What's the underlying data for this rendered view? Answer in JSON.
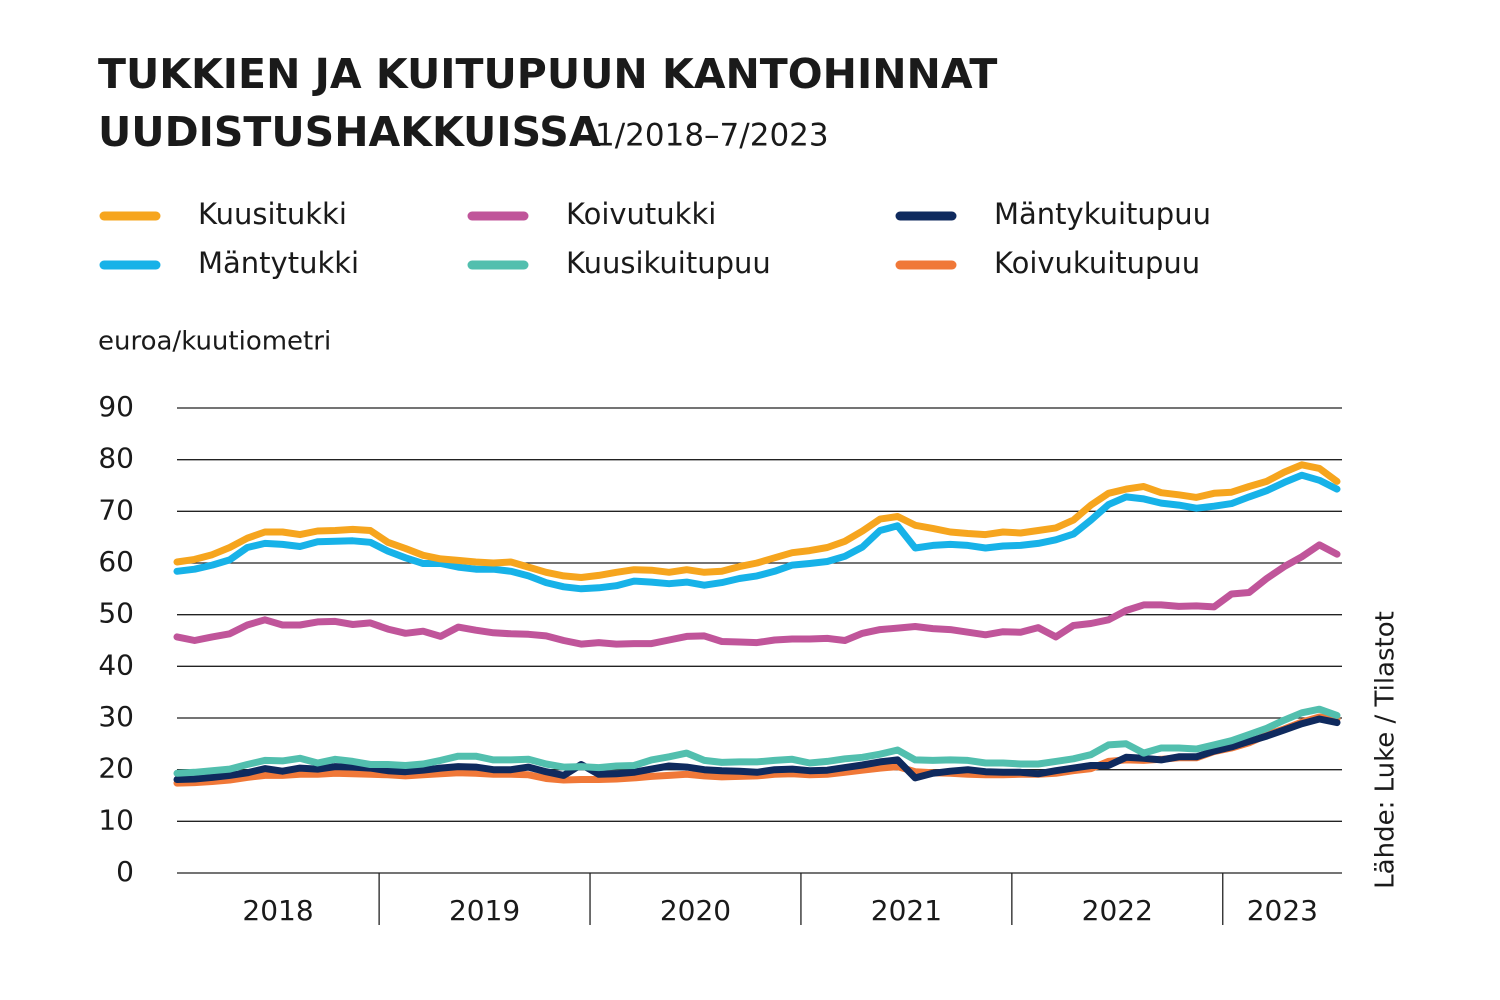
{
  "chart_data": {
    "type": "line",
    "title": [
      "TUKKIEN JA KUITUPUUN KANTOHINNAT",
      "UUDISTUSHAKKUISSA"
    ],
    "subtitle": "1/2018–7/2023",
    "y_label": "euroa/kuutiometri",
    "source": "Lähde: Luke / Tilastot",
    "categories": [
      "2018",
      "2018",
      "2018",
      "2018",
      "2018",
      "2018",
      "2018",
      "2018",
      "2018",
      "2018",
      "2018",
      "2018",
      "2019",
      "2019",
      "2019",
      "2019",
      "2019",
      "2019",
      "2019",
      "2019",
      "2019",
      "2019",
      "2019",
      "2019",
      "2020",
      "2020",
      "2020",
      "2020",
      "2020",
      "2020",
      "2020",
      "2020",
      "2020",
      "2020",
      "2020",
      "2020",
      "2021",
      "2021",
      "2021",
      "2021",
      "2021",
      "2021",
      "2021",
      "2021",
      "2021",
      "2021",
      "2021",
      "2021",
      "2022",
      "2022",
      "2022",
      "2022",
      "2022",
      "2022",
      "2022",
      "2022",
      "2022",
      "2022",
      "2022",
      "2022",
      "2023",
      "2023",
      "2023",
      "2023",
      "2023",
      "2023",
      "2023"
    ],
    "ylim": [
      0,
      90
    ],
    "yticks": [
      0,
      10,
      20,
      30,
      40,
      50,
      60,
      70,
      80,
      90
    ],
    "grid": true,
    "series": [
      {
        "name": "Kuusitukki",
        "color": "#f6a51e",
        "values": [
          60.2,
          60.7,
          61.6,
          63,
          64.8,
          66,
          66,
          65.5,
          66.2,
          66.3,
          66.5,
          66.3,
          64,
          62.8,
          61.5,
          60.8,
          60.5,
          60.2,
          60,
          60.2,
          59.2,
          58.2,
          57.5,
          57.2,
          57.6,
          58.2,
          58.7,
          58.6,
          58.2,
          58.7,
          58.2,
          58.4,
          59.3,
          60,
          61,
          62,
          62.4,
          63,
          64.2,
          66.2,
          68.5,
          69,
          67.3,
          66.7,
          66,
          65.7,
          65.5,
          66,
          65.8,
          66.3,
          66.8,
          68.3,
          71.2,
          73.5,
          74.3,
          74.8,
          73.6,
          73.2,
          72.7,
          73.5,
          73.7,
          74.8,
          75.8,
          77.6,
          79,
          78.3,
          75.8
        ]
      },
      {
        "name": "Mäntytukki",
        "color": "#17b2e8",
        "values": [
          58.4,
          58.8,
          59.6,
          60.6,
          63,
          63.8,
          63.6,
          63.2,
          64.1,
          64.2,
          64.3,
          64,
          62.3,
          61,
          59.9,
          59.9,
          59.2,
          58.8,
          58.8,
          58.4,
          57.5,
          56.2,
          55.4,
          55,
          55.2,
          55.6,
          56.5,
          56.3,
          56,
          56.3,
          55.7,
          56.2,
          57,
          57.5,
          58.4,
          59.6,
          59.9,
          60.3,
          61.3,
          63.1,
          66.3,
          67.2,
          62.9,
          63.4,
          63.6,
          63.4,
          62.9,
          63.3,
          63.4,
          63.8,
          64.5,
          65.6,
          68.3,
          71.3,
          72.8,
          72.4,
          71.6,
          71.2,
          70.6,
          71,
          71.5,
          72.8,
          74,
          75.6,
          77,
          76,
          74.3
        ]
      },
      {
        "name": "Koivutukki",
        "color": "#c0559a",
        "values": [
          45.7,
          45,
          45.7,
          46.3,
          48,
          49,
          48,
          48,
          48.6,
          48.7,
          48.1,
          48.4,
          47.2,
          46.4,
          46.8,
          45.8,
          47.6,
          47,
          46.5,
          46.3,
          46.2,
          45.9,
          45,
          44.3,
          44.6,
          44.3,
          44.4,
          44.4,
          45.1,
          45.8,
          45.9,
          44.8,
          44.7,
          44.6,
          45.1,
          45.3,
          45.3,
          45.4,
          45,
          46.4,
          47.1,
          47.4,
          47.7,
          47.3,
          47.1,
          46.6,
          46.1,
          46.7,
          46.6,
          47.5,
          45.7,
          47.9,
          48.3,
          49,
          50.8,
          51.9,
          51.9,
          51.6,
          51.7,
          51.5,
          54,
          54.3,
          57,
          59.3,
          61.2,
          63.5,
          61.7
        ]
      },
      {
        "name": "Kuusikuitupuu",
        "color": "#52bfae",
        "values": [
          19.3,
          19.5,
          19.8,
          20.1,
          21,
          21.8,
          21.7,
          22.2,
          21.3,
          22,
          21.6,
          21,
          21,
          20.8,
          21.1,
          21.8,
          22.6,
          22.6,
          21.9,
          21.9,
          22,
          21.1,
          20.5,
          20.6,
          20.4,
          20.7,
          20.8,
          21.9,
          22.5,
          23.2,
          21.8,
          21.4,
          21.5,
          21.5,
          21.8,
          22,
          21.3,
          21.6,
          22.1,
          22.4,
          23,
          23.8,
          21.9,
          21.8,
          21.9,
          21.8,
          21.3,
          21.3,
          21.1,
          21.1,
          21.6,
          22.1,
          22.9,
          24.8,
          25,
          23.2,
          24.2,
          24.2,
          24,
          24.8,
          25.6,
          26.8,
          28,
          29.6,
          31,
          31.7,
          30.5
        ]
      },
      {
        "name": "Mäntykuitupuu",
        "color": "#0f2a5e",
        "values": [
          18.1,
          18.2,
          18.5,
          18.9,
          19.4,
          20.2,
          19.7,
          20.3,
          20.1,
          20.6,
          20.5,
          20.3,
          19.8,
          19.6,
          19.9,
          20.3,
          20.6,
          20.5,
          20,
          20,
          20.5,
          19.6,
          18.9,
          21,
          19.1,
          19.2,
          19.5,
          20.1,
          20.7,
          20.5,
          20,
          19.8,
          19.7,
          19.5,
          20,
          20.1,
          19.8,
          19.9,
          20.4,
          20.9,
          21.5,
          21.9,
          18.4,
          19.3,
          19.7,
          20,
          19.6,
          19.5,
          19.5,
          19.2,
          19.8,
          20.3,
          20.8,
          20.8,
          22.4,
          22.2,
          21.9,
          22.5,
          22.5,
          23.6,
          24.4,
          25.5,
          26.5,
          27.7,
          28.9,
          29.8,
          29.1
        ]
      },
      {
        "name": "Koivukuitupuu",
        "color": "#f07838",
        "values": [
          17.4,
          17.5,
          17.7,
          18,
          18.5,
          18.9,
          18.9,
          19.1,
          19.1,
          19.3,
          19.2,
          19.1,
          19,
          18.8,
          19,
          19.2,
          19.4,
          19.3,
          19.1,
          19.1,
          19,
          18.3,
          18,
          18.1,
          18.1,
          18.2,
          18.4,
          18.7,
          18.9,
          19.1,
          18.8,
          18.6,
          18.7,
          18.8,
          19.1,
          19.2,
          19,
          19.1,
          19.5,
          19.9,
          20.3,
          20.6,
          19.6,
          19.4,
          19.3,
          19.1,
          19,
          19,
          19.1,
          19.1,
          19.3,
          19.8,
          20.2,
          21.6,
          21.9,
          21.8,
          22,
          22.3,
          22.3,
          23.5,
          24.2,
          25.2,
          26.7,
          27.9,
          29.2,
          30.2,
          29.8
        ]
      }
    ]
  }
}
